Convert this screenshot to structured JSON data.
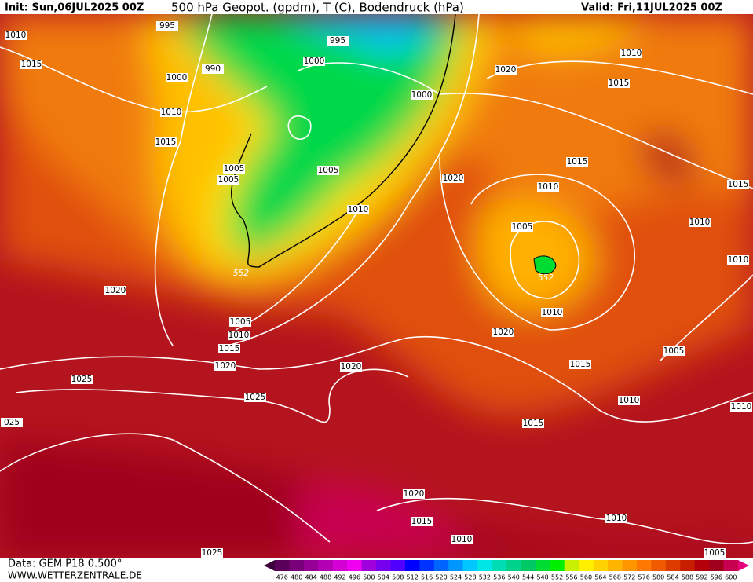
{
  "header": {
    "init": "Init: Sun,06JUL2025 00Z",
    "title": "500 hPa Geopot. (gpdm), T (C), Bodendruck (hPa)",
    "valid": "Valid: Fri,11JUL2025 00Z"
  },
  "map": {
    "isobar_labels": [
      "1010",
      "1015",
      "1000",
      "995",
      "990",
      "1010",
      "1015",
      "1005",
      "1005",
      "995",
      "1000",
      "1000",
      "1005",
      "1010",
      "552",
      "1020",
      "1005",
      "1010",
      "1015",
      "1020",
      "1025",
      "1025",
      "025",
      "1020",
      "1020",
      "1020",
      "1010",
      "1015",
      "1015",
      "1010",
      "1005",
      "552",
      "1010",
      "1020",
      "1015",
      "1010",
      "1015",
      "1010",
      "1005",
      "1010",
      "1015",
      "1020",
      "1015",
      "1010",
      "1010",
      "1025",
      "1005",
      "1010"
    ]
  },
  "colorbar": {
    "labels": [
      "476",
      "480",
      "484",
      "488",
      "492",
      "496",
      "500",
      "504",
      "508",
      "512",
      "516",
      "520",
      "524",
      "528",
      "532",
      "536",
      "540",
      "544",
      "548",
      "552",
      "556",
      "560",
      "564",
      "568",
      "572",
      "576",
      "580",
      "584",
      "588",
      "592",
      "596",
      "600"
    ],
    "colors": [
      "#5a005a",
      "#780078",
      "#960096",
      "#b400b4",
      "#d200d2",
      "#f000f0",
      "#a000dc",
      "#7800f0",
      "#5000ff",
      "#0000ff",
      "#0032ff",
      "#0064ff",
      "#0096ff",
      "#00c8ff",
      "#00e6e6",
      "#00dcb4",
      "#00d28c",
      "#00c864",
      "#00dc32",
      "#00f000",
      "#c8f000",
      "#fff000",
      "#ffd200",
      "#ffb400",
      "#ff9600",
      "#ff7800",
      "#f05a00",
      "#dc3c00",
      "#c81e00",
      "#b4000a",
      "#a0001e",
      "#c80050"
    ]
  },
  "footer": {
    "source": "Data: GEM P18 0.500°",
    "site": "WWW.WETTERZENTRALE.DE"
  }
}
